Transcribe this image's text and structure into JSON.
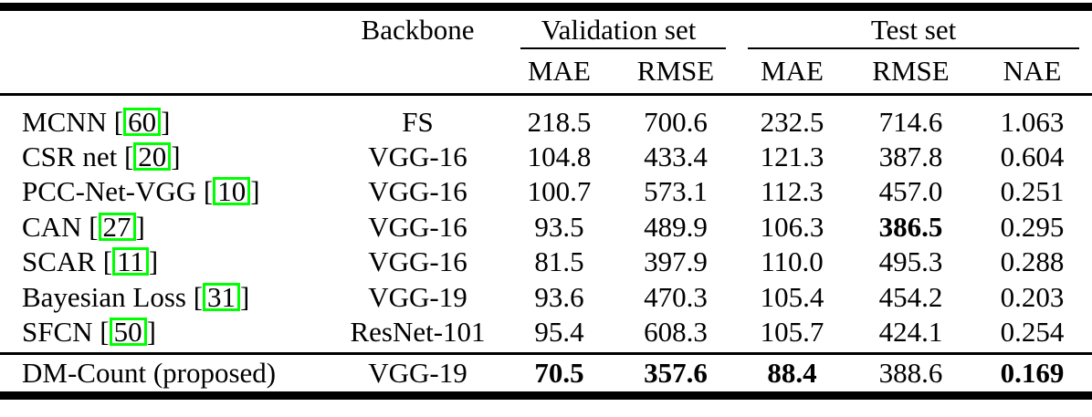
{
  "colors": {
    "background": "#ffffff",
    "text": "#000000",
    "rules": "#000000",
    "citation_box_border": "#00ff00"
  },
  "table": {
    "headers": {
      "method": "",
      "backbone": "Backbone",
      "validation_group": "Validation set",
      "test_group": "Test set",
      "val_mae": "MAE",
      "val_rmse": "RMSE",
      "test_mae": "MAE",
      "test_rmse": "RMSE",
      "test_nae": "NAE"
    },
    "citation_brackets": {
      "open": "[",
      "close": "]"
    },
    "columns": [
      "backbone",
      "val_mae",
      "val_rmse",
      "test_mae",
      "test_rmse",
      "nae"
    ],
    "rows": [
      {
        "method": "MCNN",
        "cite": "60",
        "backbone": "FS",
        "val_mae": "218.5",
        "val_rmse": "700.6",
        "test_mae": "232.5",
        "test_rmse": "714.6",
        "nae": "1.063",
        "bold": []
      },
      {
        "method": "CSR net",
        "cite": "20",
        "backbone": "VGG-16",
        "val_mae": "104.8",
        "val_rmse": "433.4",
        "test_mae": "121.3",
        "test_rmse": "387.8",
        "nae": "0.604",
        "bold": []
      },
      {
        "method": "PCC-Net-VGG",
        "cite": "10",
        "backbone": "VGG-16",
        "val_mae": "100.7",
        "val_rmse": "573.1",
        "test_mae": "112.3",
        "test_rmse": "457.0",
        "nae": "0.251",
        "bold": []
      },
      {
        "method": "CAN",
        "cite": "27",
        "backbone": "VGG-16",
        "val_mae": "93.5",
        "val_rmse": "489.9",
        "test_mae": "106.3",
        "test_rmse": "386.5",
        "nae": "0.295",
        "bold": [
          "test_rmse"
        ]
      },
      {
        "method": "SCAR",
        "cite": "11",
        "backbone": "VGG-16",
        "val_mae": "81.5",
        "val_rmse": "397.9",
        "test_mae": "110.0",
        "test_rmse": "495.3",
        "nae": "0.288",
        "bold": []
      },
      {
        "method": "Bayesian Loss",
        "cite": "31",
        "backbone": "VGG-19",
        "val_mae": "93.6",
        "val_rmse": "470.3",
        "test_mae": "105.4",
        "test_rmse": "454.2",
        "nae": "0.203",
        "bold": []
      },
      {
        "method": "SFCN",
        "cite": "50",
        "backbone": "ResNet-101",
        "val_mae": "95.4",
        "val_rmse": "608.3",
        "test_mae": "105.7",
        "test_rmse": "424.1",
        "nae": "0.254",
        "bold": []
      },
      {
        "method": "DM-Count (proposed)",
        "cite": null,
        "backbone": "VGG-19",
        "val_mae": "70.5",
        "val_rmse": "357.6",
        "test_mae": "88.4",
        "test_rmse": "388.6",
        "nae": "0.169",
        "bold": [
          "val_mae",
          "val_rmse",
          "test_mae",
          "nae"
        ],
        "final": true
      }
    ]
  }
}
